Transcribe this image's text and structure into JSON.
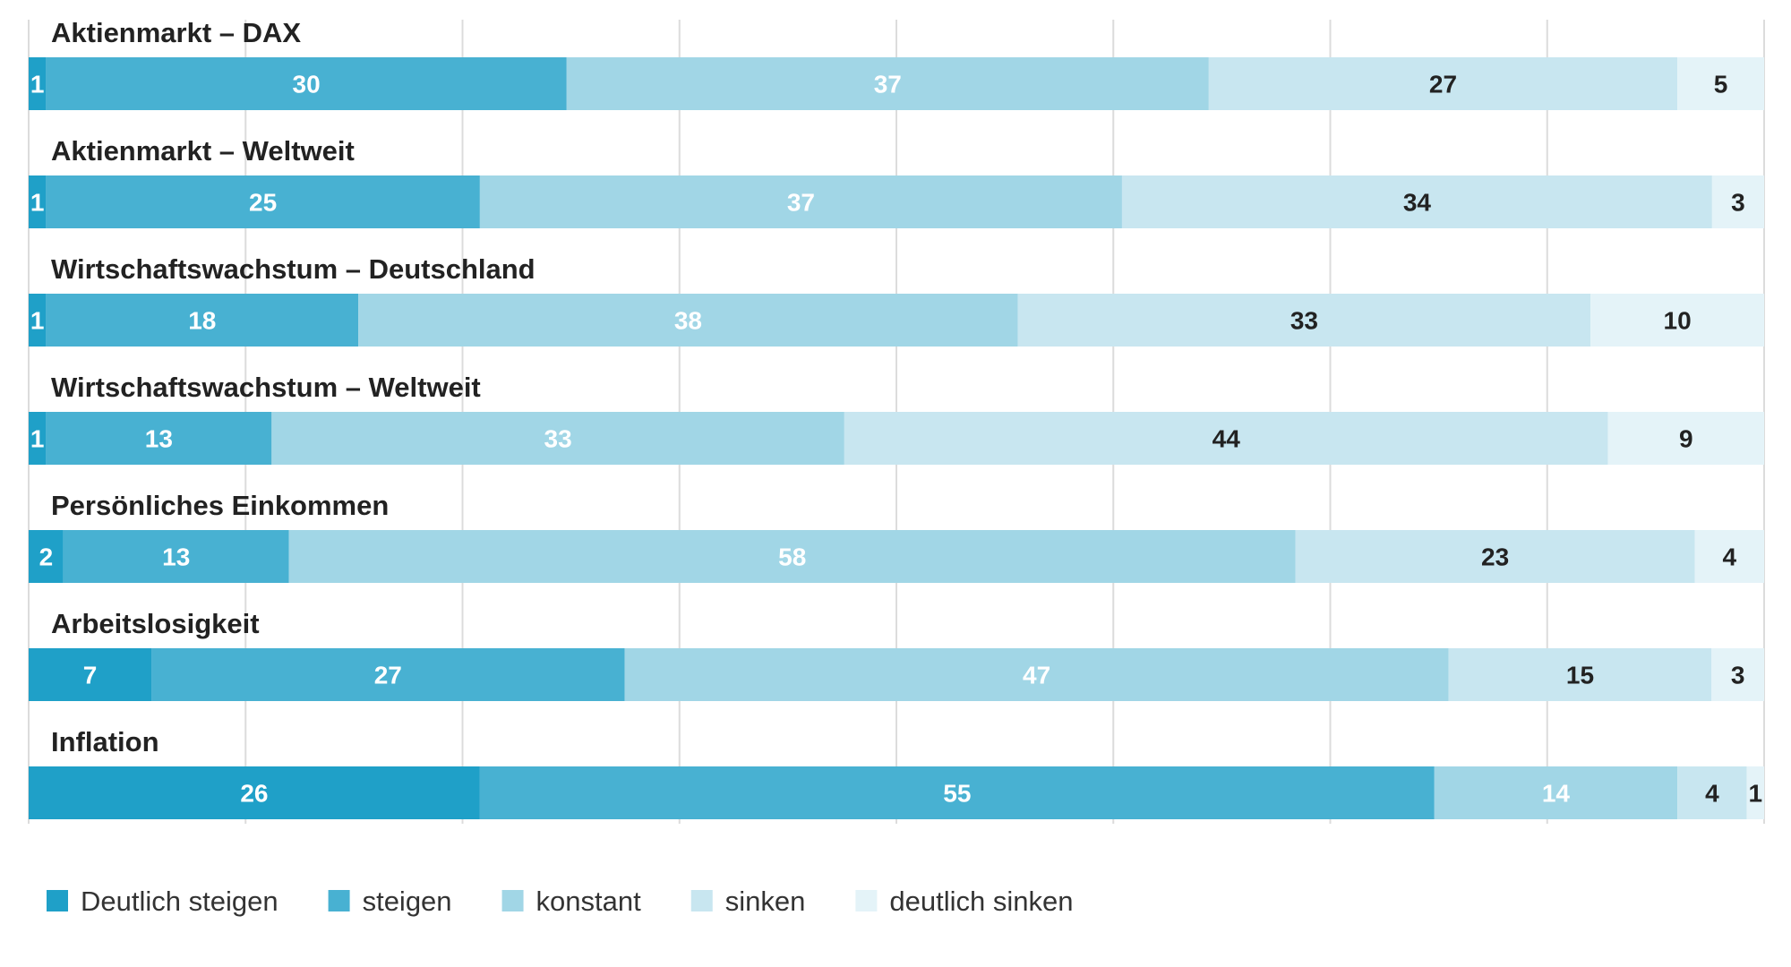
{
  "chart_data": {
    "type": "bar",
    "orientation": "horizontal",
    "stacked": true,
    "grid": true,
    "legend_position": "bottom-left",
    "xlim": [
      0,
      100
    ],
    "categories": [
      "Aktienmarkt – DAX",
      "Aktienmarkt – Weltweit",
      "Wirtschaftswachstum – Deutschland",
      "Wirtschaftswachstum – Weltweit",
      "Persönliches Einkommen",
      "Arbeitslosigkeit",
      "Inflation"
    ],
    "series": [
      {
        "name": "Deutlich steigen",
        "color": "#1fa0c8",
        "label_color": "#ffffff",
        "values": [
          1,
          1,
          1,
          1,
          2,
          7,
          26
        ]
      },
      {
        "name": "steigen",
        "color": "#48b1d2",
        "label_color": "#ffffff",
        "values": [
          30,
          25,
          18,
          13,
          13,
          27,
          55
        ]
      },
      {
        "name": "konstant",
        "color": "#a1d6e6",
        "label_color": "#ffffff",
        "values": [
          37,
          37,
          38,
          33,
          58,
          47,
          14
        ]
      },
      {
        "name": "sinken",
        "color": "#c8e6f0",
        "label_color": "#222222",
        "values": [
          27,
          34,
          33,
          44,
          23,
          15,
          4
        ]
      },
      {
        "name": "deutlich sinken",
        "color": "#e4f3f8",
        "label_color": "#222222",
        "values": [
          5,
          3,
          10,
          9,
          4,
          3,
          1
        ]
      }
    ]
  }
}
